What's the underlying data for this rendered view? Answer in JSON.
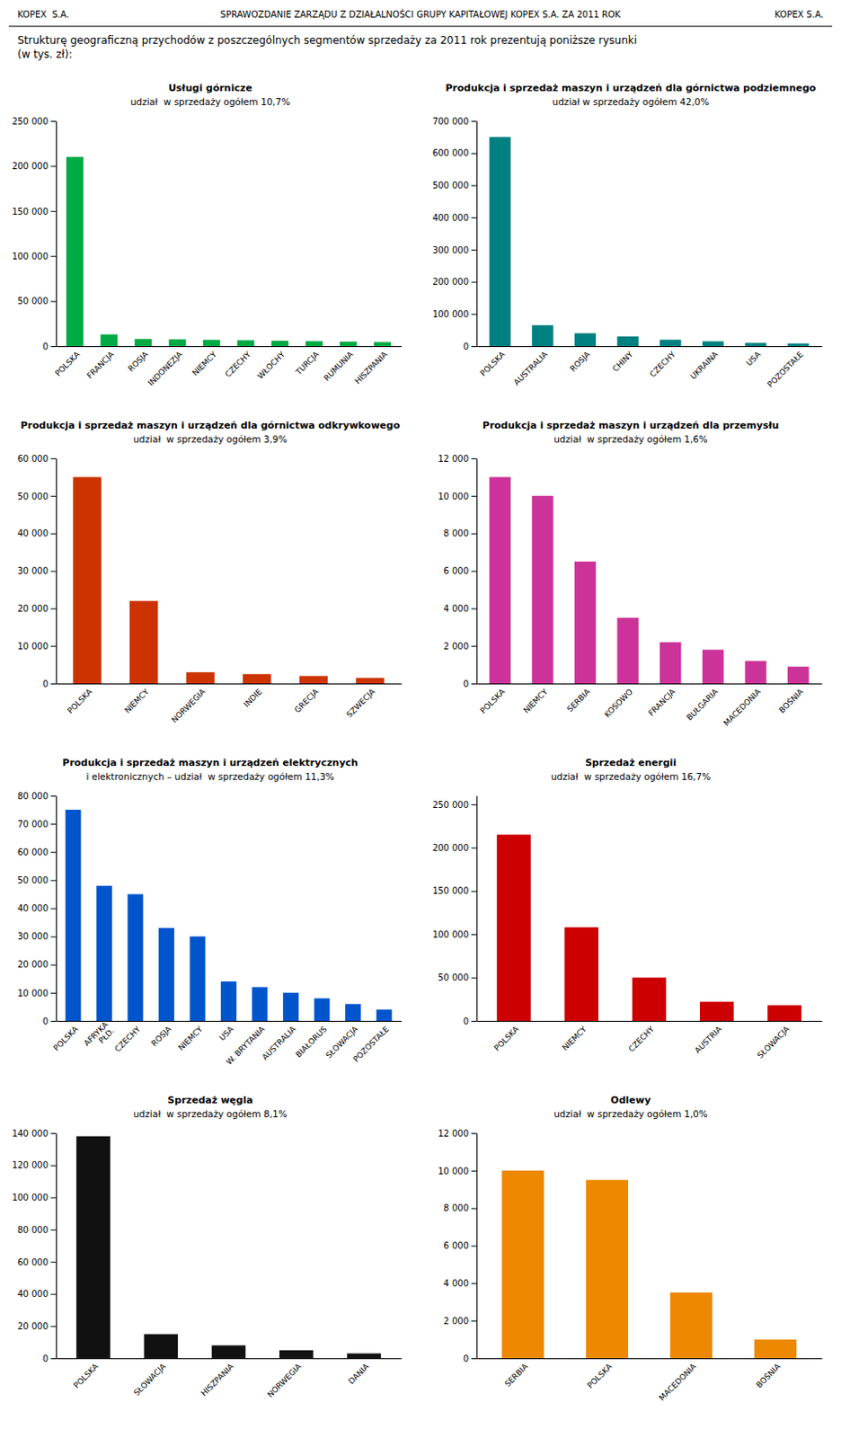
{
  "header_left": "KOPEX  S.A.",
  "header_center": "SPRAWOZDANIE ZARZĄDU Z DZIAŁALNOŚCI GRUPY KAPITAŁOWEJ KOPEX S.A. ZA 2011 ROK",
  "header_right": "KOPEX S.A.",
  "intro": [
    "Strukturę geograficzną przychodów z poszczególnych segmentów sprzedaży za 2011 rok prezentują poniższe rysunki",
    "(w tys. zł):"
  ],
  "chart_data": [
    {
      "type": "bar",
      "title": "Usługi górnicze",
      "subtitle": "udział  w sprzedaży ogółem 10,7%",
      "color": "#00aa44",
      "categories": [
        "POLSKA",
        "FRANCJA",
        "ROSJA",
        "INDONEZJA",
        "NIEMCY",
        "CZECHY",
        "WŁOCHY",
        "TURCJA",
        "RUMUNIA",
        "HISZPANIA"
      ],
      "values": [
        210000,
        13000,
        8000,
        7500,
        7000,
        6500,
        6000,
        5500,
        5000,
        4500
      ],
      "ylim": [
        0,
        250000
      ],
      "yticks": [
        0,
        {
          "value": 50000,
          "label": "50 000"
        },
        {
          "value": 100000,
          "label": "100 000"
        },
        {
          "value": 150000,
          "label": "150 000"
        },
        {
          "value": 200000,
          "label": "200 000"
        },
        {
          "value": 250000,
          "label": "250 000"
        }
      ],
      "grid": false
    },
    {
      "type": "bar",
      "title": "Produkcja i sprzedaż maszyn i urządzeń dla górnictwa podziemnego",
      "subtitle": "udział w sprzedaży ogółem 42,0%",
      "color": "#008080",
      "categories": [
        "POLSKA",
        "AUSTRALIA",
        "ROSJA",
        "CHINY",
        "CZECHY",
        "UKRAINA",
        "USA",
        "POZOSTAŁE"
      ],
      "values": [
        650000,
        65000,
        40000,
        30000,
        20000,
        15000,
        10000,
        8000
      ],
      "ylim": [
        0,
        700000
      ],
      "yticks": [
        0,
        {
          "value": 100000,
          "label": "100 000"
        },
        {
          "value": 200000,
          "label": "200 000"
        },
        {
          "value": 300000,
          "label": "300 000"
        },
        {
          "value": 400000,
          "label": "400 000"
        },
        {
          "value": 500000,
          "label": "500 000"
        },
        {
          "value": 600000,
          "label": "600 000"
        },
        {
          "value": 700000,
          "label": "700 000"
        }
      ],
      "grid": false
    },
    {
      "type": "bar",
      "title": "Produkcja i sprzedaż maszyn i urządzeń dla górnictwa odkrywkowego",
      "subtitle": "udział  w sprzedaży ogółem 3,9%",
      "color": "#cc3300",
      "categories": [
        "POLSKA",
        "NIEMCY",
        "NORWEGIA",
        "INDIE",
        "GRECJA",
        "SZWECJA"
      ],
      "values": [
        55000,
        22000,
        3000,
        2500,
        2000,
        1500
      ],
      "ylim": [
        0,
        60000
      ],
      "yticks": [
        0,
        {
          "value": 10000,
          "label": "10 000"
        },
        {
          "value": 20000,
          "label": "20 000"
        },
        {
          "value": 30000,
          "label": "30 000"
        },
        {
          "value": 40000,
          "label": "40 000"
        },
        {
          "value": 50000,
          "label": "50 000"
        },
        {
          "value": 60000,
          "label": "60 000"
        }
      ],
      "grid": false
    },
    {
      "type": "bar",
      "title": "Produkcja i sprzedaż maszyn i urządzeń dla przemysłu",
      "subtitle": "udział  w sprzedaży ogółem 1,6%",
      "color": "#cc3399",
      "categories": [
        "POLSKA",
        "NIEMCY",
        "SERBIA",
        "KOSOWO",
        "FRANCJA",
        "BUŁGARIA",
        "MACEDONIA",
        "BOŚNIA"
      ],
      "values": [
        11000,
        10000,
        6500,
        3500,
        2200,
        1800,
        1200,
        900
      ],
      "ylim": [
        0,
        12000
      ],
      "yticks": [
        0,
        {
          "value": 2000,
          "label": "2 000"
        },
        {
          "value": 4000,
          "label": "4 000"
        },
        {
          "value": 6000,
          "label": "6 000"
        },
        {
          "value": 8000,
          "label": "8 000"
        },
        {
          "value": 10000,
          "label": "10 000"
        },
        {
          "value": 12000,
          "label": "12 000"
        }
      ],
      "grid": false
    },
    {
      "type": "bar",
      "title": "Produkcja i sprzedaż maszyn i urządzeń elektrycznych",
      "subtitle": "i elektronicznych – udział  w sprzedaży ogółem 11,3%",
      "color": "#0055cc",
      "categories": [
        "POLSKA",
        "AFRYKA\nPŁD.",
        "CZECHY",
        "ROSJA",
        "NIEMCY",
        "USA",
        "W. BRYTANIA",
        "AUSTRALIA",
        "BIAŁORUS",
        "SŁOWACJA",
        "POZOSTAŁE"
      ],
      "values": [
        75000,
        48000,
        45000,
        33000,
        30000,
        14000,
        12000,
        10000,
        8000,
        6000,
        4000
      ],
      "ylim": [
        0,
        80000
      ],
      "yticks": [
        0,
        {
          "value": 10000,
          "label": "10 000"
        },
        {
          "value": 20000,
          "label": "20 000"
        },
        {
          "value": 30000,
          "label": "30 000"
        },
        {
          "value": 40000,
          "label": "40 000"
        },
        {
          "value": 50000,
          "label": "50 000"
        },
        {
          "value": 60000,
          "label": "60 000"
        },
        {
          "value": 70000,
          "label": "70 000"
        },
        {
          "value": 80000,
          "label": "80 000"
        }
      ],
      "grid": false
    },
    {
      "type": "bar",
      "title": "Sprzedaż energii",
      "subtitle": "udział  w sprzedaży ogółem 16,7%",
      "color": "#cc0000",
      "categories": [
        "POLSKA",
        "NIEMCY",
        "CZECHY",
        "AUSTRIA",
        "SŁOWACJA"
      ],
      "values": [
        215000,
        108000,
        50000,
        22000,
        18000
      ],
      "ylim": [
        0,
        260000
      ],
      "yticks": [
        0,
        {
          "value": 50000,
          "label": "50 000"
        },
        {
          "value": 100000,
          "label": "100 000"
        },
        {
          "value": 150000,
          "label": "150 000"
        },
        {
          "value": 200000,
          "label": "200 000"
        },
        {
          "value": 250000,
          "label": "250 000"
        }
      ],
      "grid": false
    },
    {
      "type": "bar",
      "title": "Sprzedaż węgla",
      "subtitle": "udział  w sprzedaży ogółem 8,1%",
      "color": "#111111",
      "categories": [
        "POLSKA",
        "SŁOWACJA",
        "HISZPANIA",
        "NORWEGIA",
        "DANIA"
      ],
      "values": [
        138000,
        15000,
        8000,
        5000,
        3000
      ],
      "ylim": [
        0,
        140000
      ],
      "yticks": [
        0,
        {
          "value": 20000,
          "label": "20 000"
        },
        {
          "value": 40000,
          "label": "40 000"
        },
        {
          "value": 60000,
          "label": "60 000"
        },
        {
          "value": 80000,
          "label": "80 000"
        },
        {
          "value": 100000,
          "label": "100 000"
        },
        {
          "value": 120000,
          "label": "120 000"
        },
        {
          "value": 140000,
          "label": "140 000"
        }
      ],
      "grid": false
    },
    {
      "type": "bar",
      "title": "Odlewy",
      "subtitle": "udział  w sprzedaży ogółem 1,0%",
      "color": "#ee8800",
      "categories": [
        "SERBIA",
        "POLSKA",
        "MACEDONIA",
        "BOŚNIA"
      ],
      "values": [
        10000,
        9500,
        3500,
        1000
      ],
      "ylim": [
        0,
        12000
      ],
      "yticks": [
        0,
        {
          "value": 2000,
          "label": "2 000"
        },
        {
          "value": 4000,
          "label": "4 000"
        },
        {
          "value": 6000,
          "label": "6 000"
        },
        {
          "value": 8000,
          "label": "8 000"
        },
        {
          "value": 10000,
          "label": "10 000"
        },
        {
          "value": 12000,
          "label": "12 000"
        }
      ],
      "grid": false
    }
  ]
}
